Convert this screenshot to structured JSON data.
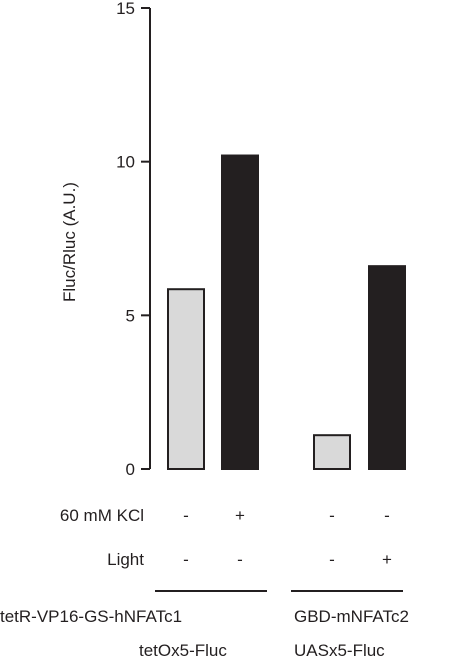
{
  "chart_data": {
    "type": "bar",
    "title": "",
    "xlabel": "",
    "ylabel": "Fluc/Rluc (A.U.)",
    "ylim": [
      0,
      15
    ],
    "yticks": [
      0,
      5,
      10,
      15
    ],
    "grid": false,
    "bars": [
      {
        "group": 0,
        "value": 5.85,
        "color": "#d9d9d9"
      },
      {
        "group": 0,
        "value": 10.2,
        "color": "#231f20"
      },
      {
        "group": 1,
        "value": 1.1,
        "color": "#d9d9d9"
      },
      {
        "group": 1,
        "value": 6.6,
        "color": "#231f20"
      }
    ],
    "conditions": [
      {
        "name": "60 mM KCl",
        "values": [
          "-",
          "+",
          "-",
          "-"
        ]
      },
      {
        "name": "Light",
        "values": [
          "-",
          "-",
          "-",
          "+"
        ]
      }
    ],
    "groups": [
      {
        "line1": "tetR-VP16-GS-hNFATc1",
        "line2": "tetOx5-Fluc"
      },
      {
        "line1": "GBD-mNFATc2",
        "line2": "UASx5-Fluc"
      }
    ]
  }
}
